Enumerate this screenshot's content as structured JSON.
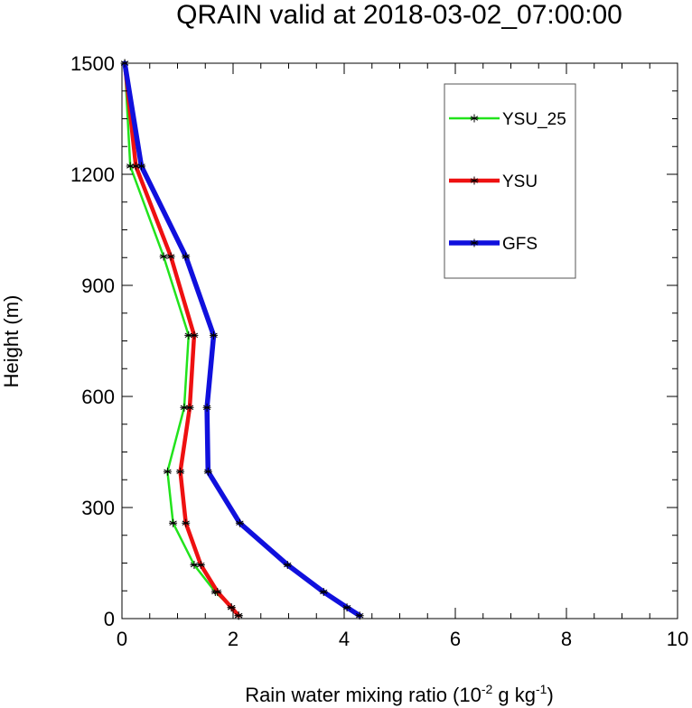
{
  "chart_data": {
    "type": "line",
    "title": "QRAIN valid at 2018-03-02_07:00:00",
    "xlabel": "Rain water mixing ratio (10",
    "xlabel_sup1": "-2",
    "xlabel_mid": " g kg",
    "xlabel_sup2": "-1",
    "xlabel_end": ")",
    "ylabel": "Height (m)",
    "xlim": [
      0,
      10
    ],
    "ylim": [
      0,
      1500
    ],
    "xticks": [
      "0",
      "2",
      "4",
      "6",
      "8",
      "10"
    ],
    "yticks": [
      "0",
      "300",
      "600",
      "900",
      "1200",
      "1500"
    ],
    "grid": false,
    "legend_position": "top-right",
    "series": [
      {
        "name": "YSU_25",
        "color": "#22e31c",
        "width": "thin",
        "marker": "asterisk",
        "points": [
          [
            2.1,
            8
          ],
          [
            1.97,
            30
          ],
          [
            1.68,
            72
          ],
          [
            1.3,
            145
          ],
          [
            0.92,
            258
          ],
          [
            0.82,
            397
          ],
          [
            1.12,
            570
          ],
          [
            1.2,
            765
          ],
          [
            0.75,
            978
          ],
          [
            0.15,
            1222
          ],
          [
            0.05,
            1500
          ]
        ]
      },
      {
        "name": "YSU",
        "color": "#ee1111",
        "width": "medium",
        "marker": "asterisk",
        "points": [
          [
            2.1,
            8
          ],
          [
            1.97,
            30
          ],
          [
            1.72,
            72
          ],
          [
            1.42,
            145
          ],
          [
            1.15,
            258
          ],
          [
            1.05,
            397
          ],
          [
            1.22,
            570
          ],
          [
            1.3,
            765
          ],
          [
            0.88,
            978
          ],
          [
            0.25,
            1222
          ],
          [
            0.05,
            1500
          ]
        ]
      },
      {
        "name": "GFS",
        "color": "#1010dd",
        "width": "thick",
        "marker": "asterisk",
        "points": [
          [
            4.28,
            8
          ],
          [
            4.05,
            30
          ],
          [
            3.63,
            72
          ],
          [
            2.98,
            145
          ],
          [
            2.12,
            258
          ],
          [
            1.55,
            397
          ],
          [
            1.53,
            570
          ],
          [
            1.65,
            765
          ],
          [
            1.15,
            978
          ],
          [
            0.35,
            1222
          ],
          [
            0.05,
            1500
          ]
        ]
      }
    ]
  }
}
